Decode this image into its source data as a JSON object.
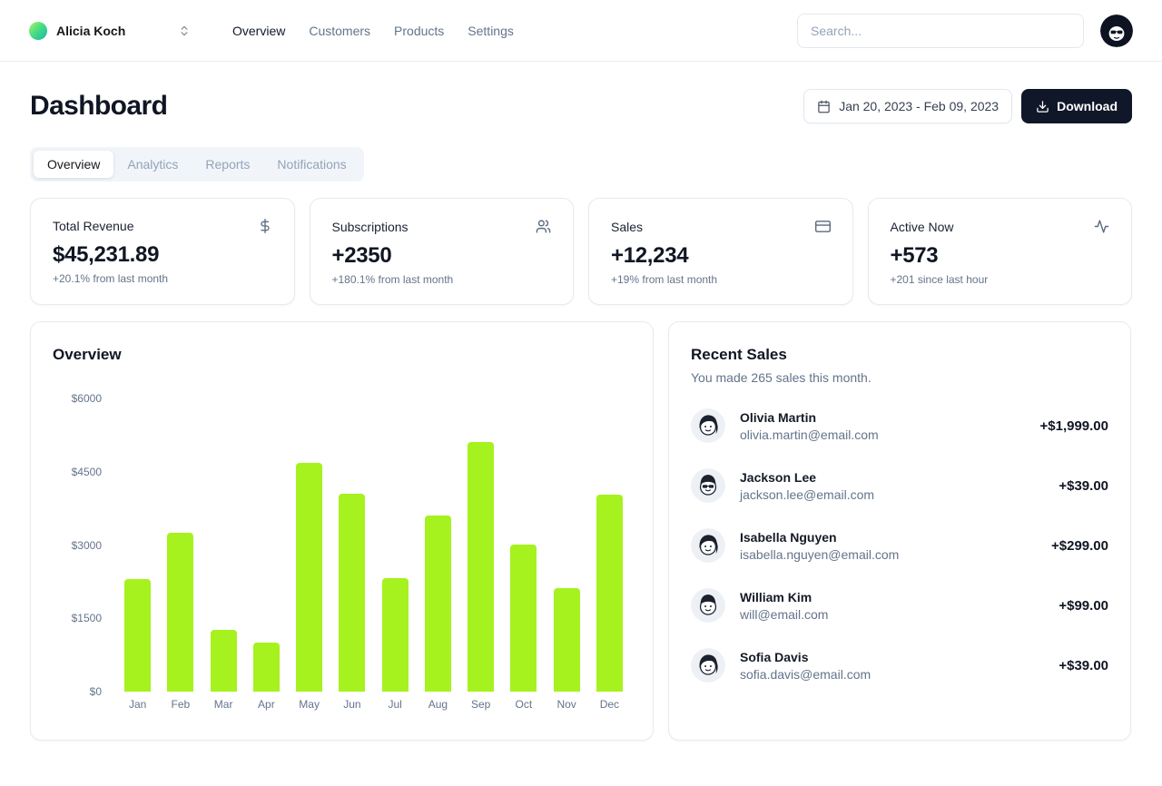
{
  "header": {
    "team_name": "Alicia Koch",
    "nav": [
      {
        "label": "Overview",
        "active": true
      },
      {
        "label": "Customers",
        "active": false
      },
      {
        "label": "Products",
        "active": false
      },
      {
        "label": "Settings",
        "active": false
      }
    ],
    "search_placeholder": "Search..."
  },
  "page": {
    "title": "Dashboard",
    "date_range": "Jan 20, 2023 - Feb 09, 2023",
    "download_label": "Download",
    "tabs": [
      {
        "label": "Overview",
        "active": true
      },
      {
        "label": "Analytics",
        "active": false
      },
      {
        "label": "Reports",
        "active": false
      },
      {
        "label": "Notifications",
        "active": false
      }
    ]
  },
  "stats": [
    {
      "title": "Total Revenue",
      "icon": "dollar-icon",
      "value": "$45,231.89",
      "caption": "+20.1% from last month"
    },
    {
      "title": "Subscriptions",
      "icon": "users-icon",
      "value": "+2350",
      "caption": "+180.1% from last month"
    },
    {
      "title": "Sales",
      "icon": "credit-card-icon",
      "value": "+12,234",
      "caption": "+19% from last month"
    },
    {
      "title": "Active Now",
      "icon": "activity-icon",
      "value": "+573",
      "caption": "+201 since last hour"
    }
  ],
  "chart_data": {
    "type": "bar",
    "title": "Overview",
    "categories": [
      "Jan",
      "Feb",
      "Mar",
      "Apr",
      "May",
      "Jun",
      "Jul",
      "Aug",
      "Sep",
      "Oct",
      "Nov",
      "Dec"
    ],
    "values": [
      2300,
      3250,
      1270,
      1010,
      4680,
      4050,
      2320,
      3600,
      5100,
      3000,
      2120,
      4030
    ],
    "y_tick_labels": [
      "$6000",
      "$4500",
      "$3000",
      "$1500",
      "$0"
    ],
    "ylim": [
      0,
      6000
    ],
    "xlabel": "",
    "ylabel": "",
    "grid": false,
    "legend": false,
    "bar_color": "#a5f21e"
  },
  "recent_sales": {
    "title": "Recent Sales",
    "subtitle": "You made 265 sales this month.",
    "items": [
      {
        "name": "Olivia Martin",
        "email": "olivia.martin@email.com",
        "amount": "+$1,999.00",
        "avatar_icon": "woman-avatar-icon"
      },
      {
        "name": "Jackson Lee",
        "email": "jackson.lee@email.com",
        "amount": "+$39.00",
        "avatar_icon": "man-sunglasses-avatar-icon"
      },
      {
        "name": "Isabella Nguyen",
        "email": "isabella.nguyen@email.com",
        "amount": "+$299.00",
        "avatar_icon": "woman-avatar-icon"
      },
      {
        "name": "William Kim",
        "email": "will@email.com",
        "amount": "+$99.00",
        "avatar_icon": "man-avatar-icon"
      },
      {
        "name": "Sofia Davis",
        "email": "sofia.davis@email.com",
        "amount": "+$39.00",
        "avatar_icon": "woman-avatar-icon"
      }
    ]
  },
  "colors": {
    "accent_bar": "#a5f21e",
    "dark_button": "#101729",
    "border": "#e6eaf0",
    "muted_text": "#64748b",
    "team_avatar_gradient_start": "#b7f06b",
    "team_avatar_gradient_end": "#14b8a6"
  }
}
